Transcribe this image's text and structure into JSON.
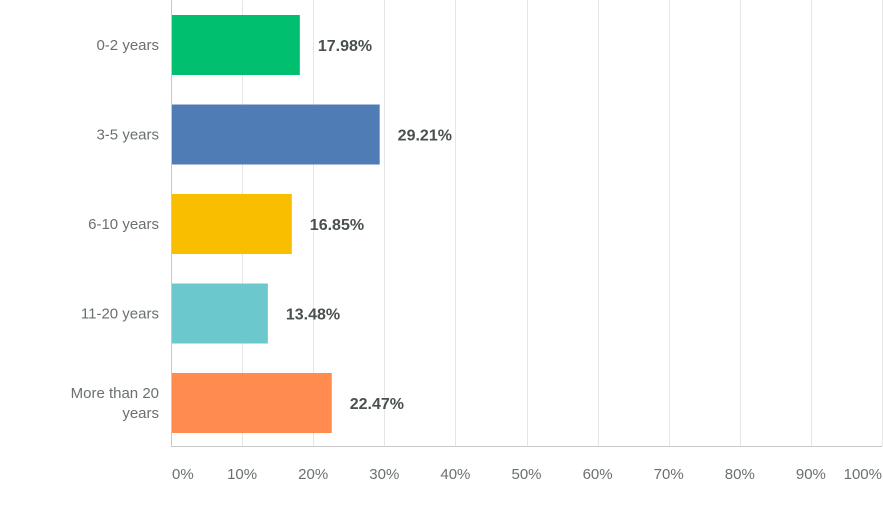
{
  "chart_data": {
    "type": "bar",
    "orientation": "horizontal",
    "categories": [
      [
        "0-2 years"
      ],
      [
        "3-5 years"
      ],
      [
        "6-10 years"
      ],
      [
        "11-20 years"
      ],
      [
        "More than 20",
        "years"
      ]
    ],
    "values": [
      17.98,
      29.21,
      16.85,
      13.48,
      22.47
    ],
    "value_labels": [
      "17.98%",
      "29.21%",
      "16.85%",
      "13.48%",
      "22.47%"
    ],
    "colors": [
      "#00bf6f",
      "#507cb6",
      "#f9be00",
      "#6bc8cd",
      "#ff8b4f"
    ],
    "xlim": [
      0,
      100
    ],
    "x_ticks": [
      0,
      10,
      20,
      30,
      40,
      50,
      60,
      70,
      80,
      90,
      100
    ],
    "x_tick_labels": [
      "0%",
      "10%",
      "20%",
      "30%",
      "40%",
      "50%",
      "60%",
      "70%",
      "80%",
      "90%",
      "100%"
    ],
    "grid": true,
    "title": "",
    "xlabel": "",
    "ylabel": ""
  }
}
